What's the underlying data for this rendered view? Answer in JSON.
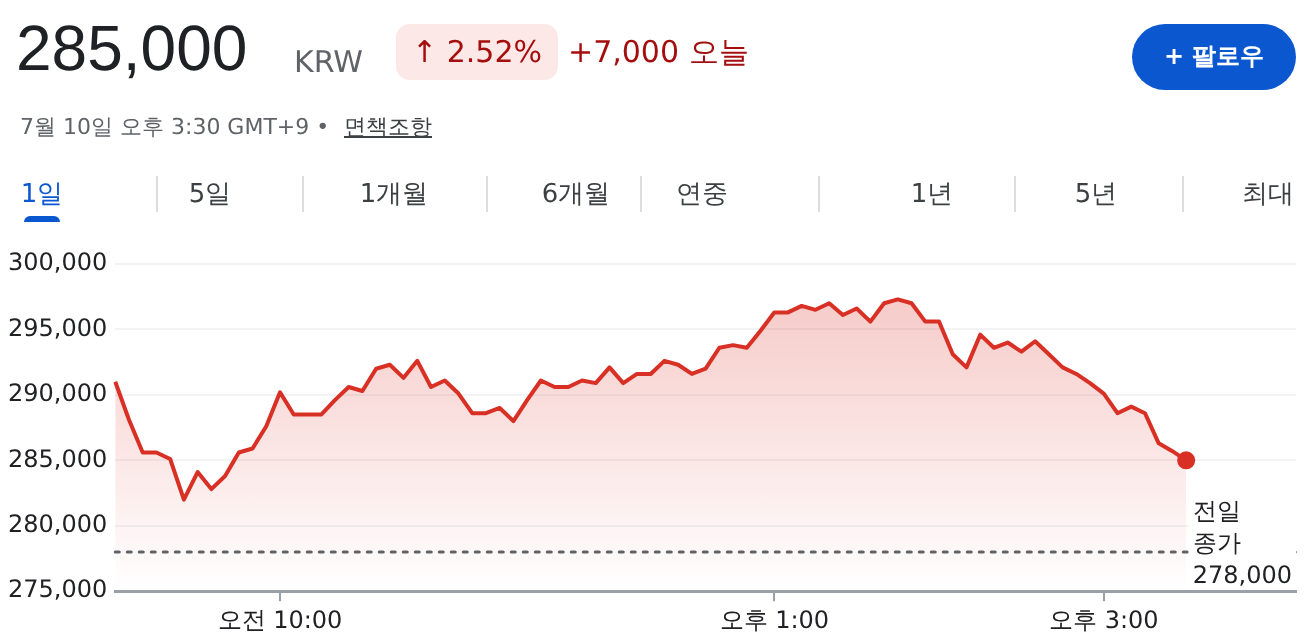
{
  "chart_data": {
    "type": "area",
    "title": "285,000",
    "annotations": [
      "KRW",
      "↑ 2.52%",
      "+7,000 오늘",
      "+ 팔로우",
      "7월 10일 오후 3:30 GMT+9 •",
      "면책조항",
      "1일",
      "5일",
      "1개월",
      "6개월",
      "연중",
      "1년",
      "5년",
      "최대"
    ],
    "categories": [
      null,
      null,
      null,
      null,
      null,
      null,
      null,
      null,
      null,
      null,
      null,
      null,
      "오전 10:00",
      null,
      null,
      null,
      null,
      null,
      null,
      null,
      null,
      null,
      null,
      null,
      null,
      null,
      null,
      null,
      null,
      null,
      null,
      null,
      null,
      null,
      null,
      null,
      null,
      null,
      null,
      null,
      null,
      null,
      null,
      null,
      null,
      null,
      null,
      null,
      "오후 1:00",
      null,
      null,
      null,
      null,
      null,
      null,
      null,
      null,
      null,
      null,
      null,
      null,
      null,
      null,
      null,
      null,
      null,
      null,
      null,
      null,
      null,
      null,
      null,
      "오후 3:00",
      null,
      null,
      null,
      null,
      null,
      null,
      null,
      null,
      null,
      null,
      null,
      null,
      null,
      null
    ],
    "series": [
      {
        "color": "#d93025",
        "values": [
          291000,
          288100,
          285600,
          285600,
          285100,
          282000,
          284100,
          282800,
          283800,
          285600,
          285900,
          287600,
          290200,
          288500,
          288500,
          288500,
          289600,
          290600,
          290300,
          292000,
          292300,
          291300,
          292600,
          290600,
          291100,
          290100,
          288600,
          288600,
          289000,
          288000,
          289600,
          291100,
          290600,
          290600,
          291100,
          290900,
          292100,
          290900,
          291600,
          291600,
          292600,
          292300,
          291600,
          292000,
          293600,
          293800,
          293600,
          294900,
          296300,
          296300,
          296800,
          296500,
          297000,
          296100,
          296600,
          295600,
          297000,
          297300,
          297000,
          295600,
          295600,
          293100,
          292100,
          294600,
          293600,
          294000,
          293300,
          294100,
          293100,
          292100,
          291600,
          290900,
          290100,
          288600,
          289100,
          288600,
          286300,
          285700,
          285000,
          null,
          null,
          null,
          null,
          null,
          null,
          null,
          null
        ]
      }
    ],
    "ylim": [
      275000,
      300000
    ],
    "yticks": [
      {
        "value": 275000,
        "label": "275,000"
      },
      {
        "value": 280000,
        "label": "280,000"
      },
      {
        "value": 285000,
        "label": "285,000"
      },
      {
        "value": 290000,
        "label": "290,000"
      },
      {
        "value": 295000,
        "label": "295,000"
      },
      {
        "value": 300000,
        "label": "300,000"
      }
    ],
    "ref_lines": [
      {
        "axis": "y",
        "value": 278000,
        "label": "전일 종가 278,000",
        "color": "#5f6368",
        "line_style": "dotted"
      }
    ],
    "grid": "y",
    "legend": false,
    "line_style": "solid",
    "marker": "none"
  }
}
